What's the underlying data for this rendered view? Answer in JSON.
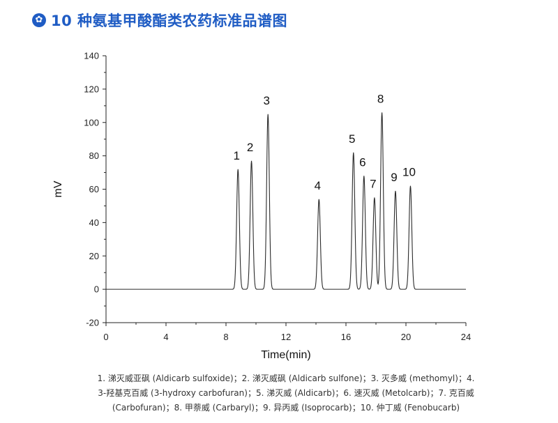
{
  "header": {
    "icon": "✿",
    "title": "10 种氨基甲酸酯类农药标准品谱图"
  },
  "chart_data": {
    "type": "line",
    "xlabel": "Time(min)",
    "ylabel": "mV",
    "xlim": [
      0,
      24
    ],
    "ylim": [
      -20,
      140
    ],
    "xticks": [
      0,
      4,
      8,
      12,
      16,
      20,
      24
    ],
    "yticks": [
      -20,
      0,
      20,
      40,
      60,
      80,
      100,
      120,
      140
    ],
    "baseline": 0,
    "peaks": [
      {
        "label": "1",
        "time": 8.8,
        "height": 72
      },
      {
        "label": "2",
        "time": 9.7,
        "height": 77
      },
      {
        "label": "3",
        "time": 10.8,
        "height": 105
      },
      {
        "label": "4",
        "time": 14.2,
        "height": 54
      },
      {
        "label": "5",
        "time": 16.5,
        "height": 82
      },
      {
        "label": "6",
        "time": 17.2,
        "height": 68
      },
      {
        "label": "7",
        "time": 17.9,
        "height": 55
      },
      {
        "label": "8",
        "time": 18.4,
        "height": 106
      },
      {
        "label": "9",
        "time": 19.3,
        "height": 59
      },
      {
        "label": "10",
        "time": 20.3,
        "height": 62
      }
    ]
  },
  "caption": {
    "line1": "1. 涕灭威亚砜 (Aldicarb sulfoxide)；2. 涕灭威砜 (Aldicarb sulfone)；3. 灭多威 (methomyl)；4.",
    "line2": "3-羟基克百威 (3-hydroxy carbofuran)；5. 涕灭威 (Aldicarb)；6. 速灭威 (Metolcarb)；7. 克百威",
    "line3": "(Carbofuran)；8. 甲萘威 (Carbaryl)；9. 异丙威 (Isoprocarb)；10. 仲丁威 (Fenobucarb)"
  }
}
